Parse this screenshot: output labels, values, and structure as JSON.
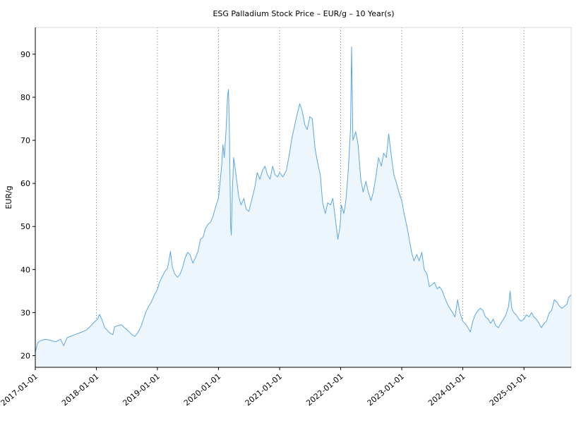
{
  "chart_data": {
    "type": "area",
    "title": "ESG Palladium Stock Price – EUR/g – 10 Year(s)",
    "xlabel": "",
    "ylabel": "EUR/g",
    "x_ticks": [
      "2017-01-01",
      "2018-01-01",
      "2019-01-01",
      "2020-01-01",
      "2021-01-01",
      "2022-01-01",
      "2023-01-01",
      "2024-01-01",
      "2025-01-01"
    ],
    "y_ticks": [
      20,
      30,
      40,
      50,
      60,
      70,
      80,
      90
    ],
    "xlim": [
      "2017-01-01",
      "2025-10-10"
    ],
    "ylim": [
      17.3,
      96.2
    ],
    "grid": "vertical-dotted",
    "colors": {
      "line": "#5aa7e6",
      "fill": "#eef6fd"
    },
    "series": [
      {
        "points": [
          [
            "2017-01-01",
            20.8
          ],
          [
            "2017-01-15",
            23.0
          ],
          [
            "2017-02-01",
            23.5
          ],
          [
            "2017-03-01",
            23.8
          ],
          [
            "2017-04-01",
            23.6
          ],
          [
            "2017-05-01",
            23.2
          ],
          [
            "2017-06-01",
            23.8
          ],
          [
            "2017-06-20",
            22.3
          ],
          [
            "2017-07-10",
            24.2
          ],
          [
            "2017-08-01",
            24.5
          ],
          [
            "2017-09-01",
            25.0
          ],
          [
            "2017-10-01",
            25.4
          ],
          [
            "2017-11-01",
            25.9
          ],
          [
            "2017-12-01",
            27.0
          ],
          [
            "2017-12-20",
            27.8
          ],
          [
            "2018-01-10",
            28.6
          ],
          [
            "2018-01-20",
            29.6
          ],
          [
            "2018-02-05",
            28.2
          ],
          [
            "2018-02-20",
            26.5
          ],
          [
            "2018-03-10",
            25.8
          ],
          [
            "2018-03-25",
            25.2
          ],
          [
            "2018-04-10",
            24.9
          ],
          [
            "2018-04-20",
            26.7
          ],
          [
            "2018-05-10",
            27.0
          ],
          [
            "2018-06-01",
            27.2
          ],
          [
            "2018-06-20",
            26.4
          ],
          [
            "2018-07-10",
            25.8
          ],
          [
            "2018-08-01",
            24.9
          ],
          [
            "2018-08-20",
            24.5
          ],
          [
            "2018-09-10",
            25.6
          ],
          [
            "2018-09-25",
            26.8
          ],
          [
            "2018-10-10",
            28.5
          ],
          [
            "2018-10-25",
            30.2
          ],
          [
            "2018-11-10",
            31.5
          ],
          [
            "2018-11-25",
            32.4
          ],
          [
            "2018-12-15",
            34.2
          ],
          [
            "2019-01-01",
            35.4
          ],
          [
            "2019-01-15",
            37.2
          ],
          [
            "2019-02-01",
            38.5
          ],
          [
            "2019-02-15",
            39.6
          ],
          [
            "2019-03-01",
            40.2
          ],
          [
            "2019-03-10",
            41.8
          ],
          [
            "2019-03-20",
            44.2
          ],
          [
            "2019-04-01",
            40.5
          ],
          [
            "2019-04-15",
            39.0
          ],
          [
            "2019-05-01",
            38.2
          ],
          [
            "2019-05-15",
            38.8
          ],
          [
            "2019-06-01",
            40.5
          ],
          [
            "2019-06-15",
            42.6
          ],
          [
            "2019-07-01",
            44.0
          ],
          [
            "2019-07-15",
            43.5
          ],
          [
            "2019-08-01",
            41.5
          ],
          [
            "2019-08-15",
            42.6
          ],
          [
            "2019-09-01",
            44.2
          ],
          [
            "2019-09-15",
            47.0
          ],
          [
            "2019-10-01",
            47.5
          ],
          [
            "2019-10-15",
            49.5
          ],
          [
            "2019-11-01",
            50.6
          ],
          [
            "2019-11-15",
            51.0
          ],
          [
            "2019-12-01",
            52.5
          ],
          [
            "2019-12-15",
            54.6
          ],
          [
            "2020-01-01",
            56.5
          ],
          [
            "2020-01-10",
            60.0
          ],
          [
            "2020-01-20",
            64.0
          ],
          [
            "2020-01-28",
            69.0
          ],
          [
            "2020-02-05",
            66.0
          ],
          [
            "2020-02-15",
            72.0
          ],
          [
            "2020-02-25",
            80.5
          ],
          [
            "2020-03-01",
            81.8
          ],
          [
            "2020-03-06",
            74.0
          ],
          [
            "2020-03-10",
            62.0
          ],
          [
            "2020-03-14",
            50.0
          ],
          [
            "2020-03-18",
            48.0
          ],
          [
            "2020-03-24",
            58.0
          ],
          [
            "2020-04-01",
            66.0
          ],
          [
            "2020-04-15",
            62.0
          ],
          [
            "2020-05-01",
            57.0
          ],
          [
            "2020-05-15",
            55.0
          ],
          [
            "2020-06-01",
            56.5
          ],
          [
            "2020-06-15",
            54.0
          ],
          [
            "2020-07-01",
            53.5
          ],
          [
            "2020-07-20",
            56.5
          ],
          [
            "2020-08-05",
            59.0
          ],
          [
            "2020-08-20",
            62.5
          ],
          [
            "2020-09-05",
            61.0
          ],
          [
            "2020-09-20",
            63.0
          ],
          [
            "2020-10-05",
            64.0
          ],
          [
            "2020-10-20",
            62.0
          ],
          [
            "2020-11-05",
            61.0
          ],
          [
            "2020-11-20",
            64.0
          ],
          [
            "2020-12-05",
            62.0
          ],
          [
            "2020-12-20",
            61.5
          ],
          [
            "2021-01-01",
            62.5
          ],
          [
            "2021-01-20",
            61.5
          ],
          [
            "2021-02-10",
            63.0
          ],
          [
            "2021-03-01",
            67.0
          ],
          [
            "2021-03-15",
            70.5
          ],
          [
            "2021-04-01",
            73.5
          ],
          [
            "2021-04-15",
            76.0
          ],
          [
            "2021-05-01",
            78.5
          ],
          [
            "2021-05-15",
            77.0
          ],
          [
            "2021-06-01",
            73.5
          ],
          [
            "2021-06-15",
            72.5
          ],
          [
            "2021-07-01",
            75.5
          ],
          [
            "2021-07-15",
            75.0
          ],
          [
            "2021-08-01",
            68.0
          ],
          [
            "2021-08-15",
            65.0
          ],
          [
            "2021-09-01",
            62.0
          ],
          [
            "2021-09-15",
            55.5
          ],
          [
            "2021-10-01",
            53.0
          ],
          [
            "2021-10-15",
            55.5
          ],
          [
            "2021-11-01",
            55.0
          ],
          [
            "2021-11-15",
            56.5
          ],
          [
            "2021-12-01",
            51.5
          ],
          [
            "2021-12-15",
            47.0
          ],
          [
            "2021-12-28",
            50.0
          ],
          [
            "2022-01-05",
            55.0
          ],
          [
            "2022-01-20",
            53.0
          ],
          [
            "2022-02-01",
            56.0
          ],
          [
            "2022-02-15",
            63.0
          ],
          [
            "2022-02-25",
            70.0
          ],
          [
            "2022-03-01",
            73.0
          ],
          [
            "2022-03-07",
            91.7
          ],
          [
            "2022-03-10",
            84.0
          ],
          [
            "2022-03-15",
            70.0
          ],
          [
            "2022-04-01",
            72.0
          ],
          [
            "2022-04-15",
            69.0
          ],
          [
            "2022-05-01",
            61.0
          ],
          [
            "2022-05-15",
            58.0
          ],
          [
            "2022-06-01",
            60.5
          ],
          [
            "2022-06-15",
            58.0
          ],
          [
            "2022-07-01",
            56.0
          ],
          [
            "2022-07-15",
            58.0
          ],
          [
            "2022-08-01",
            62.0
          ],
          [
            "2022-08-15",
            66.0
          ],
          [
            "2022-09-01",
            64.0
          ],
          [
            "2022-09-15",
            67.0
          ],
          [
            "2022-10-01",
            66.0
          ],
          [
            "2022-10-15",
            71.5
          ],
          [
            "2022-11-01",
            66.0
          ],
          [
            "2022-11-15",
            62.0
          ],
          [
            "2022-12-01",
            60.0
          ],
          [
            "2022-12-15",
            58.0
          ],
          [
            "2023-01-01",
            56.0
          ],
          [
            "2023-01-15",
            53.0
          ],
          [
            "2023-02-01",
            50.0
          ],
          [
            "2023-02-15",
            47.0
          ],
          [
            "2023-03-01",
            44.0
          ],
          [
            "2023-03-15",
            42.0
          ],
          [
            "2023-04-01",
            43.5
          ],
          [
            "2023-04-15",
            42.0
          ],
          [
            "2023-05-01",
            44.0
          ],
          [
            "2023-05-15",
            40.0
          ],
          [
            "2023-06-01",
            39.0
          ],
          [
            "2023-06-15",
            36.0
          ],
          [
            "2023-07-01",
            36.5
          ],
          [
            "2023-07-15",
            37.0
          ],
          [
            "2023-08-01",
            35.5
          ],
          [
            "2023-08-15",
            36.0
          ],
          [
            "2023-09-01",
            35.0
          ],
          [
            "2023-09-15",
            33.5
          ],
          [
            "2023-10-01",
            32.0
          ],
          [
            "2023-10-15",
            31.0
          ],
          [
            "2023-11-01",
            30.0
          ],
          [
            "2023-11-15",
            29.0
          ],
          [
            "2023-12-01",
            33.0
          ],
          [
            "2023-12-15",
            30.0
          ],
          [
            "2024-01-01",
            28.0
          ],
          [
            "2024-01-15",
            27.5
          ],
          [
            "2024-02-01",
            26.5
          ],
          [
            "2024-02-15",
            25.5
          ],
          [
            "2024-03-01",
            28.0
          ],
          [
            "2024-03-15",
            29.5
          ],
          [
            "2024-04-01",
            30.5
          ],
          [
            "2024-04-15",
            31.0
          ],
          [
            "2024-05-01",
            30.5
          ],
          [
            "2024-05-15",
            29.0
          ],
          [
            "2024-06-01",
            28.5
          ],
          [
            "2024-06-15",
            27.5
          ],
          [
            "2024-07-01",
            28.5
          ],
          [
            "2024-07-15",
            27.0
          ],
          [
            "2024-08-01",
            26.5
          ],
          [
            "2024-08-15",
            27.5
          ],
          [
            "2024-09-01",
            28.5
          ],
          [
            "2024-09-15",
            29.5
          ],
          [
            "2024-10-01",
            31.5
          ],
          [
            "2024-10-10",
            35.0
          ],
          [
            "2024-10-20",
            31.0
          ],
          [
            "2024-11-01",
            30.0
          ],
          [
            "2024-11-15",
            29.5
          ],
          [
            "2024-12-01",
            28.5
          ],
          [
            "2024-12-15",
            28.0
          ],
          [
            "2025-01-01",
            28.5
          ],
          [
            "2025-01-15",
            29.5
          ],
          [
            "2025-02-01",
            29.0
          ],
          [
            "2025-02-15",
            30.0
          ],
          [
            "2025-03-01",
            29.0
          ],
          [
            "2025-03-15",
            28.5
          ],
          [
            "2025-04-01",
            27.5
          ],
          [
            "2025-04-15",
            26.5
          ],
          [
            "2025-05-01",
            27.5
          ],
          [
            "2025-05-15",
            28.0
          ],
          [
            "2025-06-01",
            30.0
          ],
          [
            "2025-06-15",
            30.5
          ],
          [
            "2025-07-01",
            33.0
          ],
          [
            "2025-07-15",
            32.5
          ],
          [
            "2025-08-01",
            31.5
          ],
          [
            "2025-08-15",
            31.0
          ],
          [
            "2025-09-01",
            31.5
          ],
          [
            "2025-09-15",
            32.0
          ],
          [
            "2025-09-25",
            33.5
          ],
          [
            "2025-10-10",
            34.2
          ]
        ]
      }
    ]
  }
}
